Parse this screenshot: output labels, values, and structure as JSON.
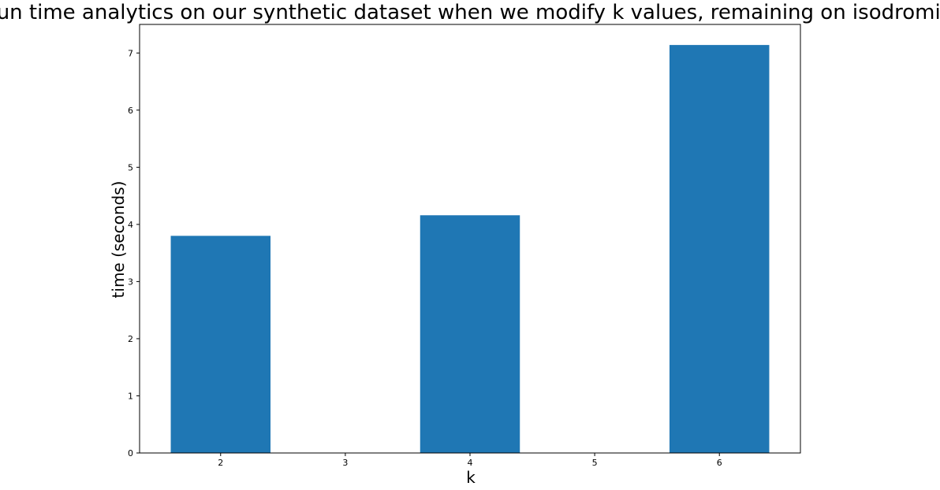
{
  "chart_data": {
    "type": "bar",
    "title": "run time analytics on our synthetic dataset when we modify k values, remaining on isodromic",
    "xlabel": "k",
    "ylabel": "time (seconds)",
    "x": [
      2,
      4,
      6
    ],
    "values": [
      3.8,
      4.16,
      7.14
    ],
    "xticks": [
      "2",
      "3",
      "4",
      "5",
      "6"
    ],
    "yticks": [
      "0",
      "1",
      "2",
      "3",
      "4",
      "5",
      "6",
      "7"
    ],
    "xlim": [
      1.35,
      6.65
    ],
    "ylim": [
      0,
      7.5
    ],
    "bar_color": "#1f77b4",
    "grid": false,
    "legend": "none"
  }
}
